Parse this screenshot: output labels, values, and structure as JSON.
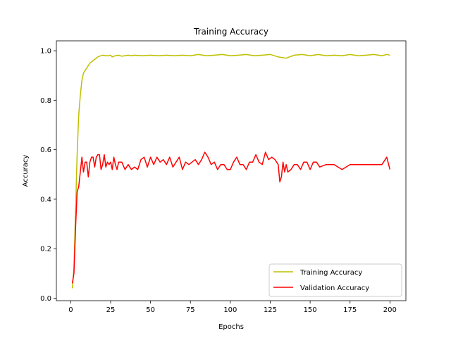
{
  "chart_data": {
    "type": "line",
    "title": "Training Accuracy",
    "xlabel": "Epochs",
    "ylabel": "Accuracy",
    "xlim": [
      -9,
      210
    ],
    "ylim": [
      -0.01,
      1.04
    ],
    "xticks": [
      0,
      25,
      50,
      75,
      100,
      125,
      150,
      175,
      200
    ],
    "yticks": [
      0.0,
      0.2,
      0.4,
      0.6,
      0.8,
      1.0
    ],
    "xtick_labels": [
      "0",
      "25",
      "50",
      "75",
      "100",
      "125",
      "150",
      "175",
      "200"
    ],
    "ytick_labels": [
      "0.0",
      "0.2",
      "0.4",
      "0.6",
      "0.8",
      "1.0"
    ],
    "grid": false,
    "legend_position": "lower-right",
    "series": [
      {
        "name": "Training Accuracy",
        "color": "#bfbf00",
        "x": [
          1,
          2,
          3,
          4,
          5,
          6,
          7,
          8,
          9,
          10,
          11,
          12,
          13,
          14,
          15,
          16,
          17,
          18,
          19,
          20,
          22,
          24,
          25,
          26,
          28,
          30,
          32,
          34,
          36,
          38,
          40,
          45,
          50,
          55,
          60,
          65,
          70,
          75,
          80,
          85,
          90,
          95,
          100,
          105,
          110,
          115,
          120,
          125,
          130,
          135,
          140,
          145,
          150,
          155,
          160,
          165,
          170,
          175,
          180,
          185,
          190,
          195,
          198,
          200
        ],
        "y": [
          0.04,
          0.12,
          0.35,
          0.58,
          0.74,
          0.82,
          0.88,
          0.91,
          0.92,
          0.93,
          0.94,
          0.95,
          0.955,
          0.96,
          0.965,
          0.97,
          0.975,
          0.978,
          0.98,
          0.982,
          0.98,
          0.98,
          0.982,
          0.975,
          0.98,
          0.982,
          0.978,
          0.98,
          0.982,
          0.98,
          0.982,
          0.98,
          0.982,
          0.98,
          0.982,
          0.98,
          0.982,
          0.98,
          0.985,
          0.98,
          0.982,
          0.985,
          0.98,
          0.982,
          0.985,
          0.98,
          0.982,
          0.985,
          0.975,
          0.97,
          0.982,
          0.985,
          0.98,
          0.985,
          0.98,
          0.982,
          0.98,
          0.985,
          0.98,
          0.982,
          0.985,
          0.98,
          0.985,
          0.982
        ]
      },
      {
        "name": "Validation Accuracy",
        "color": "#ff0000",
        "x": [
          1,
          2,
          3,
          4,
          5,
          6,
          7,
          8,
          9,
          10,
          11,
          12,
          13,
          14,
          15,
          16,
          17,
          18,
          19,
          20,
          21,
          22,
          23,
          24,
          25,
          26,
          27,
          28,
          29,
          30,
          32,
          34,
          36,
          38,
          40,
          42,
          44,
          46,
          48,
          50,
          52,
          54,
          56,
          58,
          60,
          62,
          64,
          66,
          68,
          70,
          72,
          74,
          76,
          78,
          80,
          82,
          84,
          86,
          88,
          90,
          92,
          94,
          96,
          98,
          100,
          102,
          104,
          106,
          108,
          110,
          112,
          114,
          116,
          118,
          120,
          122,
          124,
          126,
          128,
          130,
          131,
          132,
          133,
          134,
          135,
          136,
          138,
          140,
          142,
          144,
          146,
          148,
          150,
          152,
          154,
          156,
          160,
          165,
          170,
          175,
          180,
          185,
          190,
          195,
          198,
          200
        ],
        "y": [
          0.06,
          0.1,
          0.28,
          0.43,
          0.45,
          0.51,
          0.57,
          0.51,
          0.55,
          0.55,
          0.49,
          0.55,
          0.57,
          0.57,
          0.53,
          0.57,
          0.58,
          0.58,
          0.52,
          0.54,
          0.58,
          0.53,
          0.55,
          0.54,
          0.55,
          0.52,
          0.57,
          0.54,
          0.52,
          0.55,
          0.55,
          0.52,
          0.54,
          0.52,
          0.53,
          0.52,
          0.56,
          0.57,
          0.53,
          0.57,
          0.54,
          0.57,
          0.55,
          0.56,
          0.54,
          0.57,
          0.53,
          0.55,
          0.57,
          0.52,
          0.55,
          0.54,
          0.55,
          0.56,
          0.54,
          0.56,
          0.59,
          0.57,
          0.54,
          0.55,
          0.52,
          0.54,
          0.54,
          0.52,
          0.52,
          0.55,
          0.57,
          0.54,
          0.54,
          0.52,
          0.55,
          0.55,
          0.58,
          0.55,
          0.54,
          0.59,
          0.56,
          0.57,
          0.56,
          0.54,
          0.47,
          0.49,
          0.55,
          0.51,
          0.54,
          0.51,
          0.52,
          0.54,
          0.54,
          0.52,
          0.55,
          0.55,
          0.52,
          0.55,
          0.55,
          0.53,
          0.54,
          0.54,
          0.52,
          0.54,
          0.54,
          0.54,
          0.54,
          0.54,
          0.57,
          0.52
        ]
      }
    ]
  }
}
